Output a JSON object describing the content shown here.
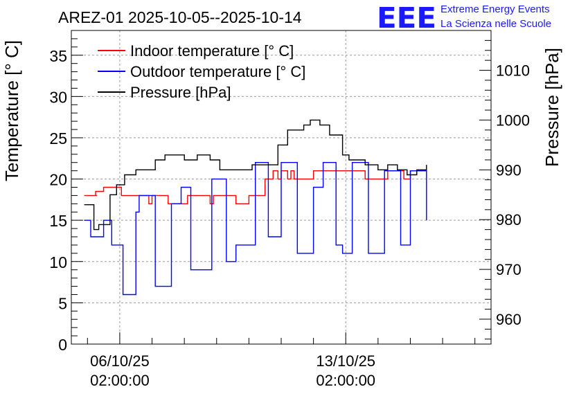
{
  "chart_data": {
    "type": "line",
    "title": "AREZ-01 2025-10-05--2025-10-14",
    "ylabel_left": "Temperature [° C]",
    "ylabel_right": "Pressure [hPa]",
    "ylim_left": [
      0,
      38
    ],
    "ylim_right": [
      955,
      1018
    ],
    "yticks_left": [
      0,
      5,
      10,
      15,
      20,
      25,
      30,
      35
    ],
    "yticks_right": [
      960,
      970,
      980,
      990,
      1000,
      1010
    ],
    "x_time_days": [
      -1.5,
      11.5
    ],
    "x_major_ticks": [
      {
        "day": 0,
        "label_date": "06/10/25",
        "label_time": "02:00:00"
      },
      {
        "day": 7,
        "label_date": "13/10/25",
        "label_time": "02:00:00"
      }
    ],
    "grid": true,
    "legend": [
      {
        "label": "Indoor temperature [° C]",
        "color": "#ff0000"
      },
      {
        "label": "Outdoor temperature [° C]",
        "color": "#0000ff"
      },
      {
        "label": "Pressure [hPa]",
        "color": "#000000"
      }
    ],
    "series": [
      {
        "name": "Indoor temperature [° C]",
        "axis": "left",
        "color": "#ff0000",
        "x": [
          -1.1,
          -0.7,
          -0.75,
          -0.5,
          -0.2,
          0.05,
          0.2,
          0.35,
          0.7,
          0.9,
          1.0,
          1.4,
          1.5,
          1.9,
          2.1,
          2.6,
          2.8,
          2.9,
          3.4,
          3.6,
          4.0,
          4.5,
          4.7,
          4.75,
          4.9,
          5.0,
          5.2,
          5.3,
          5.4,
          5.6,
          5.8,
          6.0,
          6.5,
          6.9,
          7.4,
          7.6,
          7.9,
          8.3,
          8.5,
          8.8,
          9.0,
          9.5
        ],
        "y": [
          18,
          18,
          18.5,
          19,
          19,
          18,
          18,
          18,
          18,
          17,
          18,
          18,
          17,
          17,
          18,
          18,
          17,
          18,
          18,
          17,
          18,
          20,
          20,
          21,
          20,
          21,
          20,
          21,
          20,
          20,
          20,
          21,
          21,
          21,
          21,
          20,
          20,
          21,
          21,
          20,
          21,
          21
        ]
      },
      {
        "name": "Outdoor temperature [° C]",
        "axis": "left",
        "color": "#0000ff",
        "x": [
          -1.1,
          -0.9,
          -0.5,
          -0.25,
          0.1,
          0.15,
          0.5,
          0.6,
          1.1,
          1.3,
          1.6,
          1.9,
          2.2,
          2.6,
          2.85,
          3.0,
          3.3,
          3.5,
          3.6,
          4.2,
          4.4,
          4.6,
          5.0,
          5.2,
          5.5,
          5.9,
          6.0,
          6.3,
          6.7,
          6.9,
          7.2,
          7.3,
          7.7,
          7.9,
          8.2,
          8.3,
          8.7,
          9.0,
          9.3,
          9.5
        ],
        "y": [
          15,
          13,
          15,
          12,
          6,
          6,
          16,
          18,
          7,
          7,
          17,
          19,
          9,
          9,
          20,
          20,
          10,
          10,
          12,
          22,
          22,
          13,
          22,
          22,
          11,
          11,
          19,
          22,
          12,
          11,
          22,
          22,
          11,
          11,
          21,
          21,
          12,
          21,
          21,
          15
        ]
      },
      {
        "name": "Pressure [hPa]",
        "axis": "right",
        "color": "#000000",
        "x": [
          -1.1,
          -0.8,
          -0.65,
          -0.3,
          -0.1,
          0.15,
          0.5,
          0.8,
          1.1,
          1.4,
          1.8,
          2.0,
          2.4,
          2.6,
          2.8,
          3.1,
          3.5,
          3.8,
          4.1,
          4.3,
          4.6,
          4.9,
          5.2,
          5.5,
          5.7,
          5.9,
          6.2,
          6.5,
          6.7,
          6.9,
          7.1,
          7.4,
          7.6,
          7.8,
          8.0,
          8.3,
          8.6,
          8.8,
          8.9,
          9.1,
          9.2,
          9.5
        ],
        "y": [
          983,
          978,
          979,
          985,
          987,
          989,
          990,
          990,
          992,
          993,
          993,
          992,
          993,
          993,
          992,
          990,
          990,
          990,
          991,
          991,
          991,
          995,
          998,
          998,
          999,
          1000,
          999,
          997,
          997,
          993,
          992,
          992,
          991,
          991,
          990,
          991,
          990,
          990,
          989,
          989,
          990,
          991
        ]
      }
    ]
  },
  "branding": {
    "logo_text": "EEE",
    "org_line1": "Extreme Energy Events",
    "org_line2": "La Scienza nelle Scuole"
  }
}
